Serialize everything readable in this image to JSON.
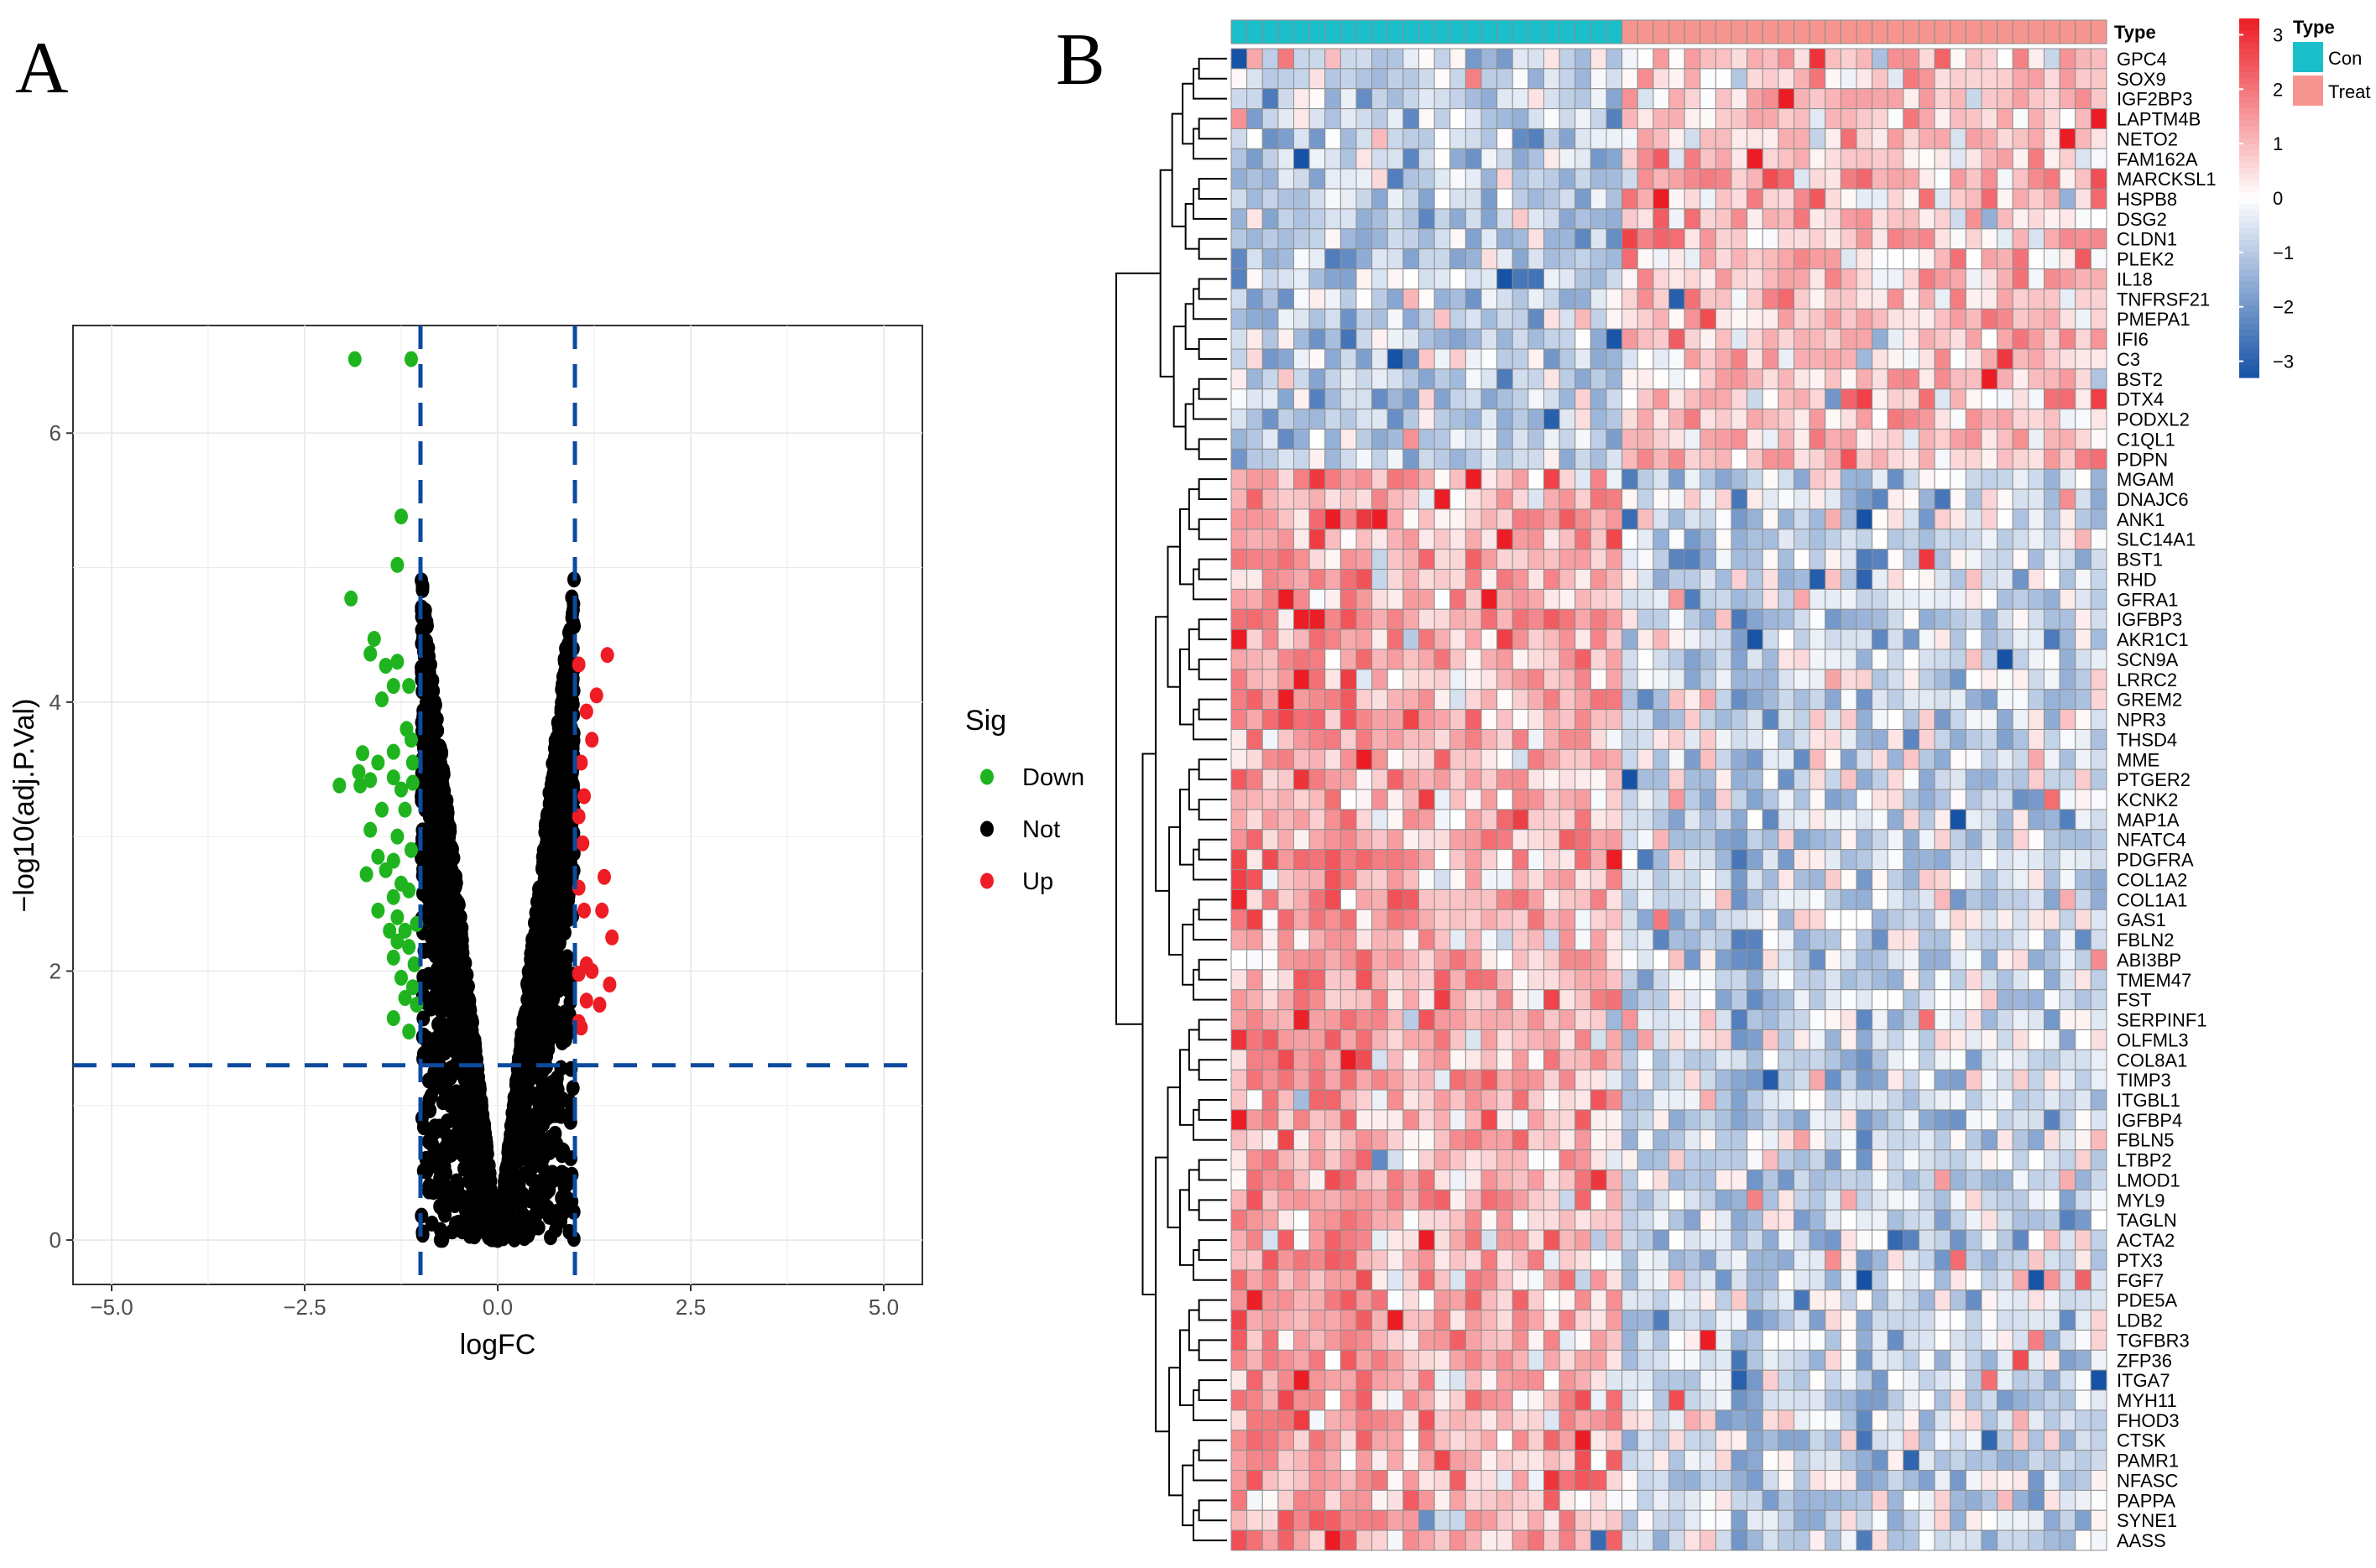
{
  "panels": {
    "a_label": "A",
    "b_label": "B"
  },
  "chart_data": [
    {
      "type": "scatter",
      "title": "",
      "xlabel": "logFC",
      "ylabel": "−log10(adj.P.Val)",
      "xlim": [
        -5.5,
        5.5
      ],
      "ylim": [
        -0.33,
        6.8
      ],
      "x_ticks": [
        -5.0,
        -2.5,
        0.0,
        2.5,
        5.0
      ],
      "x_tick_labels": [
        "−5.0",
        "−2.5",
        "0.0",
        "2.5",
        "5.0"
      ],
      "y_ticks": [
        0,
        2,
        4,
        6
      ],
      "y_tick_labels": [
        "0",
        "2",
        "4",
        "6"
      ],
      "grid": true,
      "thresholds": {
        "logFC": [
          -1,
          1
        ],
        "neg_log10_p": 1.3
      },
      "legend": {
        "title": "Sig",
        "position": "right",
        "entries": [
          {
            "name": "Down",
            "color": "#1fb41f"
          },
          {
            "name": "Not",
            "color": "#000000"
          },
          {
            "name": "Up",
            "color": "#ee1c24"
          }
        ]
      },
      "series": [
        {
          "name": "Down",
          "color": "#1fb41f",
          "points": [
            [
              -1.85,
              6.55
            ],
            [
              -1.12,
              6.55
            ],
            [
              -1.25,
              5.38
            ],
            [
              -1.3,
              5.02
            ],
            [
              -1.9,
              4.77
            ],
            [
              -1.6,
              4.47
            ],
            [
              -1.65,
              4.36
            ],
            [
              -1.45,
              4.27
            ],
            [
              -1.3,
              4.3
            ],
            [
              -1.35,
              4.12
            ],
            [
              -1.15,
              4.12
            ],
            [
              -1.5,
              4.02
            ],
            [
              -1.18,
              3.8
            ],
            [
              -1.12,
              3.72
            ],
            [
              -1.35,
              3.63
            ],
            [
              -1.75,
              3.62
            ],
            [
              -1.55,
              3.55
            ],
            [
              -1.1,
              3.55
            ],
            [
              -1.8,
              3.48
            ],
            [
              -1.65,
              3.42
            ],
            [
              -1.35,
              3.44
            ],
            [
              -2.05,
              3.38
            ],
            [
              -1.78,
              3.38
            ],
            [
              -1.25,
              3.35
            ],
            [
              -1.1,
              3.4
            ],
            [
              -1.5,
              3.2
            ],
            [
              -1.2,
              3.2
            ],
            [
              -1.65,
              3.05
            ],
            [
              -1.3,
              3.0
            ],
            [
              -1.12,
              2.9
            ],
            [
              -1.35,
              2.82
            ],
            [
              -1.55,
              2.85
            ],
            [
              -1.45,
              2.75
            ],
            [
              -1.7,
              2.72
            ],
            [
              -1.25,
              2.65
            ],
            [
              -1.35,
              2.55
            ],
            [
              -1.15,
              2.6
            ],
            [
              -1.55,
              2.45
            ],
            [
              -1.3,
              2.4
            ],
            [
              -1.4,
              2.3
            ],
            [
              -1.2,
              2.3
            ],
            [
              -1.05,
              2.35
            ],
            [
              -1.3,
              2.22
            ],
            [
              -1.15,
              2.18
            ],
            [
              -1.35,
              2.1
            ],
            [
              -1.08,
              2.05
            ],
            [
              -1.25,
              1.95
            ],
            [
              -1.1,
              1.88
            ],
            [
              -1.2,
              1.8
            ],
            [
              -1.35,
              1.65
            ],
            [
              -1.05,
              1.75
            ],
            [
              -1.15,
              1.55
            ]
          ]
        },
        {
          "name": "Not",
          "color": "#000000",
          "points": []
        },
        {
          "name": "Up",
          "color": "#ee1c24",
          "points": [
            [
              1.42,
              4.35
            ],
            [
              1.05,
              4.28
            ],
            [
              1.28,
              4.05
            ],
            [
              1.15,
              3.93
            ],
            [
              1.22,
              3.72
            ],
            [
              1.08,
              3.55
            ],
            [
              1.12,
              3.3
            ],
            [
              1.05,
              3.15
            ],
            [
              1.1,
              2.95
            ],
            [
              1.38,
              2.7
            ],
            [
              1.05,
              2.62
            ],
            [
              1.12,
              2.45
            ],
            [
              1.35,
              2.45
            ],
            [
              1.48,
              2.25
            ],
            [
              1.15,
              2.05
            ],
            [
              1.22,
              2.0
            ],
            [
              1.05,
              1.98
            ],
            [
              1.45,
              1.9
            ],
            [
              1.15,
              1.78
            ],
            [
              1.32,
              1.75
            ],
            [
              1.05,
              1.62
            ],
            [
              1.08,
              1.58
            ]
          ]
        }
      ]
    },
    {
      "type": "heatmap",
      "title": "",
      "annotation_title": "Type",
      "groups": [
        {
          "name": "Con",
          "count": 25,
          "color": "#1bbfca"
        },
        {
          "name": "Treat",
          "count": 31,
          "color": "#f6958f"
        }
      ],
      "color_scale": {
        "min": -3.3,
        "max": 3.3,
        "ticks": [
          3,
          2,
          1,
          0,
          -1,
          -2,
          -3
        ],
        "tick_labels": [
          "3",
          "2",
          "1",
          "0",
          "−1",
          "−2",
          "−3"
        ],
        "low": "#1652a6",
        "mid": "#ffffff",
        "high": "#ec1c24"
      },
      "legend": {
        "type_title": "Type",
        "type_entries": [
          "Con",
          "Treat"
        ],
        "position": "top-right"
      },
      "genes": [
        "GPC4",
        "SOX9",
        "IGF2BP3",
        "LAPTM4B",
        "NETO2",
        "FAM162A",
        "MARCKSL1",
        "HSPB8",
        "DSG2",
        "CLDN1",
        "PLEK2",
        "IL18",
        "TNFRSF21",
        "PMEPA1",
        "IFI6",
        "C3",
        "BST2",
        "DTX4",
        "PODXL2",
        "C1QL1",
        "PDPN",
        "MGAM",
        "DNAJC6",
        "ANK1",
        "SLC14A1",
        "BST1",
        "RHD",
        "GFRA1",
        "IGFBP3",
        "AKR1C1",
        "SCN9A",
        "LRRC2",
        "GREM2",
        "NPR3",
        "THSD4",
        "MME",
        "PTGER2",
        "KCNK2",
        "MAP1A",
        "NFATC4",
        "PDGFRA",
        "COL1A2",
        "COL1A1",
        "GAS1",
        "FBLN2",
        "ABI3BP",
        "TMEM47",
        "FST",
        "SERPINF1",
        "OLFML3",
        "COL8A1",
        "TIMP3",
        "ITGBL1",
        "IGFBP4",
        "FBLN5",
        "LTBP2",
        "LMOD1",
        "MYL9",
        "TAGLN",
        "ACTA2",
        "PTX3",
        "FGF7",
        "PDE5A",
        "LDB2",
        "TGFBR3",
        "ZFP36",
        "ITGA7",
        "MYH11",
        "FHOD3",
        "CTSK",
        "PAMR1",
        "NFASC",
        "PAPPA",
        "SYNE1",
        "AASS"
      ],
      "gene_group_sizes": [
        21,
        54
      ],
      "gene_group_mean_con": [
        -0.9,
        1.0
      ],
      "gene_group_mean_treat": [
        0.8,
        -0.6
      ]
    }
  ]
}
